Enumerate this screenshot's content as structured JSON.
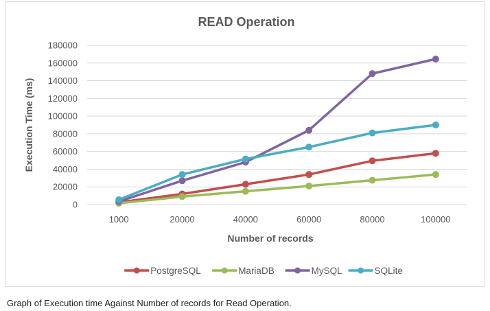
{
  "chart_data": {
    "type": "line",
    "title": "READ Operation",
    "xlabel": "Number of records",
    "ylabel": "Execution Time (ms)",
    "categories": [
      "1000",
      "20000",
      "40000",
      "60000",
      "80000",
      "100000"
    ],
    "ylim": [
      0,
      180000
    ],
    "yticks": [
      "0",
      "20000",
      "40000",
      "60000",
      "80000",
      "100000",
      "120000",
      "140000",
      "160000",
      "180000"
    ],
    "grid": true,
    "legend_position": "bottom",
    "series": [
      {
        "name": "PostgreSQL",
        "color": "#c0504d",
        "values": [
          2500,
          12000,
          23000,
          34000,
          49500,
          58000
        ]
      },
      {
        "name": "MariaDB",
        "color": "#9bbb59",
        "values": [
          1500,
          9000,
          15000,
          21000,
          27500,
          34000
        ]
      },
      {
        "name": "MySQL",
        "color": "#8064a2",
        "values": [
          3500,
          27000,
          48000,
          84000,
          148000,
          164500
        ]
      },
      {
        "name": "SQLite",
        "color": "#4bacc6",
        "values": [
          5500,
          34000,
          51500,
          65000,
          81000,
          90000
        ]
      }
    ]
  },
  "caption": "Graph of Execution time Against Number of records for Read Operation."
}
